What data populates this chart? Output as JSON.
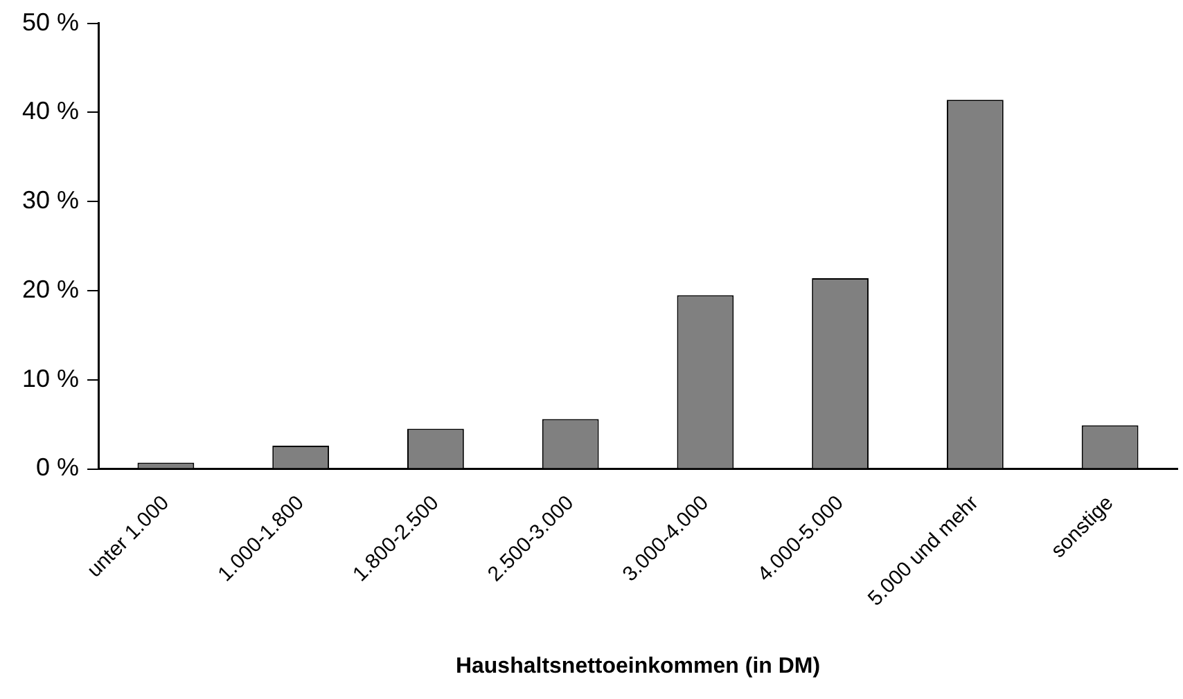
{
  "chart_data": {
    "type": "bar",
    "xlabel": "Haushaltsnettoeinkommen (in DM)",
    "categories": [
      "unter 1.000",
      "1.000-1.800",
      "1.800-2.500",
      "2.500-3.000",
      "3.000-4.000",
      "4.000-5.000",
      "5.000 und mehr",
      "sonstige"
    ],
    "values": [
      0.7,
      2.6,
      4.5,
      5.6,
      19.5,
      21.4,
      41.4,
      4.9
    ],
    "color": "#808080",
    "ylim": [
      0,
      50
    ],
    "yticks": [
      {
        "value": 0,
        "label": "0 %"
      },
      {
        "value": 10,
        "label": "10 %"
      },
      {
        "value": 20,
        "label": "20 %"
      },
      {
        "value": 30,
        "label": "30 %"
      },
      {
        "value": 40,
        "label": "40 %"
      },
      {
        "value": 50,
        "label": "50 %"
      }
    ],
    "grid": false,
    "legend": false
  }
}
